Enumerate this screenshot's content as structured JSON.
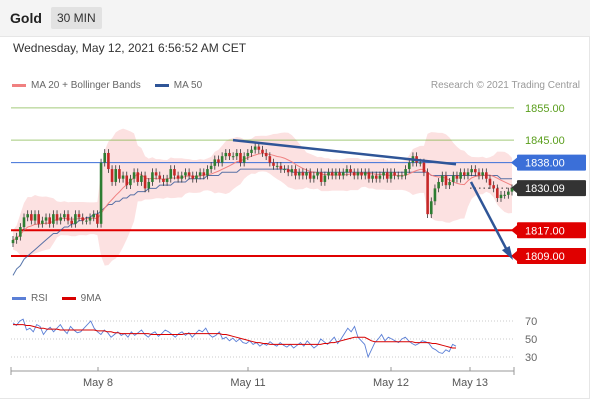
{
  "header": {
    "title": "Gold",
    "timeframe": "30 MIN"
  },
  "datetime": "Wednesday, May 12, 2021 6:56:52 AM CET",
  "legend": {
    "items": [
      {
        "label": "MA 20 + Bollinger Bands",
        "color": "#f08080"
      },
      {
        "label": "MA 50",
        "color": "#2f5597"
      }
    ],
    "copyright": "Research © 2021 Trading Central"
  },
  "rsi_legend": {
    "items": [
      {
        "label": "RSI",
        "color": "#5b7fd6"
      },
      {
        "label": "9MA",
        "color": "#d80000"
      }
    ]
  },
  "chart_data": [
    {
      "type": "candlestick",
      "title": "Gold 30 MIN",
      "ylim": [
        1800,
        1859
      ],
      "x_ticks": [
        "May 8",
        "May 11",
        "May 12",
        "May 13"
      ],
      "levels": [
        {
          "value": 1855.0,
          "label": "1855.00",
          "style": "resistance",
          "color": "#7cb342"
        },
        {
          "value": 1845.0,
          "label": "1845.00",
          "style": "resistance",
          "color": "#7cb342"
        },
        {
          "value": 1838.0,
          "label": "1838.00",
          "style": "pivot",
          "color": "#3b6fd8"
        },
        {
          "value": 1830.09,
          "label": "1830.09",
          "style": "last-price",
          "color": "#333333"
        },
        {
          "value": 1817.0,
          "label": "1817.00",
          "style": "support",
          "color": "#e00000"
        },
        {
          "value": 1809.0,
          "label": "1809.00",
          "style": "support",
          "color": "#e00000"
        }
      ],
      "close": [
        1814,
        1815,
        1818,
        1821,
        1822,
        1820,
        1822,
        1819,
        1820,
        1821,
        1819,
        1822,
        1820,
        1821,
        1822,
        1820,
        1819,
        1822,
        1821,
        1820,
        1820,
        1821,
        1822,
        1819,
        1838,
        1841,
        1836,
        1832,
        1836,
        1833,
        1834,
        1831,
        1833,
        1835,
        1832,
        1834,
        1830,
        1832,
        1835,
        1834,
        1833,
        1832,
        1833,
        1836,
        1834,
        1833,
        1834,
        1835,
        1834,
        1833,
        1834,
        1835,
        1834,
        1836,
        1837,
        1839,
        1838,
        1840,
        1841,
        1840,
        1840,
        1841,
        1838,
        1840,
        1841,
        1842,
        1843,
        1842,
        1841,
        1840,
        1838,
        1837,
        1837,
        1836,
        1836,
        1835,
        1836,
        1834,
        1835,
        1834,
        1835,
        1833,
        1834,
        1835,
        1832,
        1834,
        1835,
        1834,
        1835,
        1834,
        1835,
        1836,
        1835,
        1834,
        1835,
        1834,
        1835,
        1833,
        1834,
        1833,
        1834,
        1835,
        1833,
        1835,
        1834,
        1834,
        1834,
        1836,
        1838,
        1840,
        1838,
        1838,
        1835,
        1822,
        1826,
        1830,
        1832,
        1834,
        1831,
        1832,
        1834,
        1833,
        1835,
        1834,
        1835,
        1836,
        1835,
        1834,
        1835,
        1833,
        1831,
        1830,
        1827,
        1828,
        1828,
        1829,
        1830
      ],
      "ma50": [
        1803,
        1805,
        1806,
        1808,
        1809,
        1810,
        1811,
        1812,
        1813,
        1814,
        1815,
        1816,
        1816,
        1817,
        1818,
        1818,
        1819,
        1819,
        1820,
        1820,
        1821,
        1821,
        1822,
        1822,
        1823,
        1824,
        1825,
        1825,
        1826,
        1826,
        1827,
        1827,
        1828,
        1828,
        1829,
        1829,
        1829,
        1830,
        1830,
        1830,
        1831,
        1831,
        1831,
        1831,
        1832,
        1832,
        1832,
        1832,
        1833,
        1833,
        1833,
        1833,
        1833,
        1834,
        1834,
        1834,
        1834,
        1835,
        1835,
        1835,
        1835,
        1835,
        1836,
        1836,
        1836,
        1836,
        1836,
        1836,
        1836,
        1836,
        1836,
        1836,
        1836,
        1836,
        1836,
        1836,
        1835,
        1835,
        1835,
        1835,
        1835,
        1835,
        1835,
        1835,
        1835,
        1835,
        1835,
        1835,
        1835,
        1835,
        1835,
        1835,
        1835,
        1835,
        1835,
        1835,
        1835,
        1835,
        1835,
        1835,
        1835,
        1835,
        1835,
        1835,
        1835,
        1835,
        1835,
        1835,
        1835,
        1835,
        1835,
        1835,
        1835,
        1835,
        1834,
        1834,
        1834,
        1834,
        1834,
        1834,
        1834,
        1834,
        1834,
        1834,
        1834,
        1834,
        1834,
        1834,
        1834,
        1834,
        1834,
        1834,
        1834,
        1833,
        1833,
        1833,
        1833
      ],
      "trendlines": [
        {
          "from": [
            "May 11",
            1845
          ],
          "to": [
            "May 12",
            1837.5
          ],
          "color": "#2f5597"
        },
        {
          "from": [
            "May 12",
            1832
          ],
          "to": [
            "May 13",
            1809
          ],
          "color": "#2f5597",
          "arrow": true
        }
      ]
    },
    {
      "type": "line",
      "title": "RSI",
      "ylim": [
        20,
        80
      ],
      "y_ticks": [
        70,
        50,
        30
      ],
      "series": [
        {
          "name": "RSI",
          "color": "#5b7fd6",
          "values": [
            68,
            65,
            70,
            72,
            60,
            62,
            58,
            66,
            64,
            55,
            60,
            63,
            58,
            62,
            66,
            60,
            56,
            64,
            60,
            57,
            58,
            62,
            66,
            70,
            62,
            58,
            55,
            60,
            57,
            52,
            55,
            58,
            54,
            56,
            52,
            58,
            54,
            57,
            60,
            55,
            52,
            56,
            58,
            53,
            56,
            60,
            58,
            55,
            52,
            56,
            58,
            54,
            57,
            52,
            56,
            60,
            58,
            62,
            55,
            52,
            54,
            58,
            50,
            52,
            48,
            51,
            47,
            50,
            46,
            45,
            48,
            44,
            46,
            42,
            45,
            43,
            47,
            44,
            42,
            46,
            43,
            41,
            44,
            40,
            43,
            46,
            42,
            48,
            44,
            40,
            43,
            50,
            47,
            44,
            48,
            52,
            45,
            50,
            56,
            62,
            58,
            64,
            52,
            48,
            44,
            30,
            38,
            46,
            50,
            55,
            48,
            52,
            50,
            48,
            46,
            50,
            52,
            48,
            45,
            43,
            45,
            48,
            47,
            45,
            40,
            38,
            35,
            34,
            38,
            36,
            44,
            42
          ]
        },
        {
          "name": "9MA",
          "color": "#d80000",
          "values": [
            66,
            66,
            66,
            66,
            65,
            65,
            64,
            63,
            62,
            62,
            61,
            61,
            61,
            61,
            60,
            60,
            60,
            60,
            60,
            60,
            60,
            60,
            60,
            60,
            60,
            59,
            59,
            59,
            58,
            58,
            57,
            57,
            56,
            56,
            56,
            56,
            56,
            56,
            56,
            56,
            56,
            55,
            55,
            55,
            55,
            55,
            55,
            55,
            55,
            55,
            55,
            56,
            56,
            56,
            56,
            56,
            56,
            56,
            56,
            56,
            56,
            56,
            55,
            55,
            54,
            53,
            52,
            51,
            50,
            49,
            48,
            47,
            46,
            46,
            45,
            45,
            44,
            44,
            44,
            44,
            44,
            44,
            44,
            44,
            44,
            44,
            44,
            44,
            44,
            44,
            44,
            44,
            45,
            45,
            46,
            46,
            47,
            48,
            49,
            50,
            51,
            52,
            52,
            52,
            52,
            50,
            48,
            47,
            47,
            47,
            47,
            47,
            47,
            47,
            47,
            47,
            47,
            47,
            47,
            46,
            46,
            46,
            46,
            46,
            45,
            45,
            44,
            43,
            42,
            41,
            40,
            40
          ]
        }
      ]
    }
  ]
}
